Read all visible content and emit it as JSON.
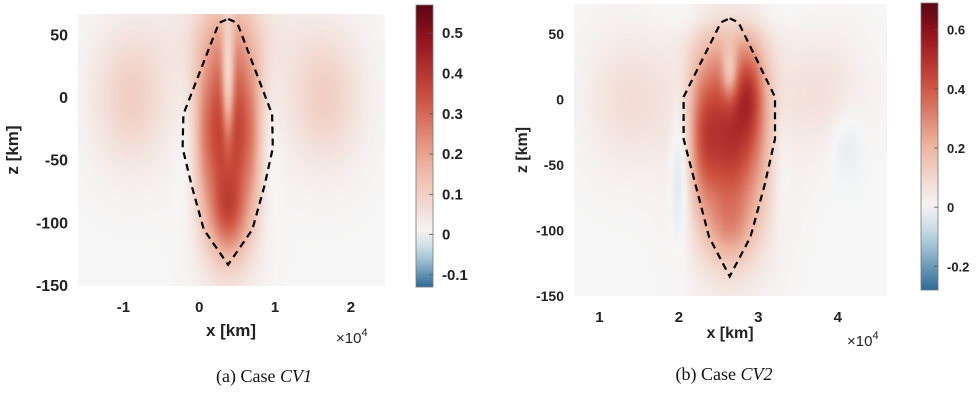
{
  "chart_data": [
    {
      "type": "heatmap",
      "caption_prefix": "(a) Case ",
      "caption_symbol": "CV1",
      "xlabel": "x [km]",
      "ylabel": "z [km]",
      "x_multiplier": "×10",
      "x_multiplier_exp": "4",
      "xlim": [
        -1.6,
        2.45
      ],
      "ylim": [
        -150,
        67
      ],
      "xticks": [
        -1,
        0,
        1,
        2
      ],
      "xtick_labels": [
        "-1",
        "0",
        "1",
        "2"
      ],
      "yticks": [
        50,
        0,
        -50,
        -100,
        -150
      ],
      "ytick_labels": [
        "50",
        "0",
        "-50",
        "-100",
        "-150"
      ],
      "colorbar": {
        "range": [
          -0.13,
          0.57
        ],
        "ticks": [
          0.5,
          0.4,
          0.3,
          0.2,
          0.1,
          0,
          -0.1
        ],
        "tick_labels": [
          "0.5",
          "0.4",
          "0.3",
          "0.2",
          "0.1",
          "0",
          "-0.1"
        ]
      },
      "field": {
        "center_x": 0.38,
        "blobs": [
          {
            "x": 0.38,
            "z": -25,
            "sx": 0.28,
            "sz": 60,
            "a": 0.42
          },
          {
            "x": 0.38,
            "z": -95,
            "sx": 0.17,
            "sz": 22,
            "a": 0.15
          },
          {
            "x": 0.38,
            "z": 10,
            "sx": 0.06,
            "sz": 35,
            "a": -0.27
          },
          {
            "x": 0.05,
            "z": -30,
            "sx": 0.09,
            "sz": 40,
            "a": 0.05
          },
          {
            "x": 0.71,
            "z": -30,
            "sx": 0.09,
            "sz": 40,
            "a": 0.05
          },
          {
            "x": -0.9,
            "z": 0,
            "sx": 0.35,
            "sz": 38,
            "a": 0.1
          },
          {
            "x": 1.65,
            "z": 0,
            "sx": 0.35,
            "sz": 38,
            "a": 0.1
          },
          {
            "x": -0.15,
            "z": -40,
            "sx": 0.12,
            "sz": 40,
            "a": -0.05
          },
          {
            "x": 0.91,
            "z": -40,
            "sx": 0.12,
            "sz": 40,
            "a": -0.05
          },
          {
            "x": 0.38,
            "z": 50,
            "sx": 0.7,
            "sz": 25,
            "a": 0.04
          }
        ]
      },
      "dashed_outline": {
        "x": [
          0.38,
          0.5,
          0.96,
          0.97,
          0.86,
          0.7,
          0.38,
          0.06,
          -0.1,
          -0.22,
          -0.21,
          0.26,
          0.38
        ],
        "z": [
          63,
          60,
          -13,
          -40,
          -70,
          -105,
          -133,
          -105,
          -70,
          -40,
          -13,
          60,
          63
        ]
      }
    },
    {
      "type": "heatmap",
      "caption_prefix": "(b) Case ",
      "caption_symbol": "CV2",
      "xlabel": "x [km]",
      "ylabel": "z [km]",
      "x_multiplier": "×10",
      "x_multiplier_exp": "4",
      "xlim": [
        0.68,
        4.62
      ],
      "ylim": [
        -150,
        73
      ],
      "xticks": [
        1,
        2,
        3,
        4
      ],
      "xtick_labels": [
        "1",
        "2",
        "3",
        "4"
      ],
      "yticks": [
        50,
        0,
        -50,
        -100,
        -150
      ],
      "ytick_labels": [
        "50",
        "0",
        "-50",
        "-100",
        "-150"
      ],
      "colorbar": {
        "range": [
          -0.28,
          0.69
        ],
        "ticks": [
          0.6,
          0.4,
          0.2,
          0,
          -0.2
        ],
        "tick_labels": [
          "0.6",
          "0.4",
          "0.2",
          "0",
          "-0.2"
        ]
      },
      "field": {
        "center_x": 2.64,
        "blobs": [
          {
            "x": 2.64,
            "z": -25,
            "sx": 0.34,
            "sz": 55,
            "a": 0.5
          },
          {
            "x": 2.9,
            "z": 5,
            "sx": 0.12,
            "sz": 25,
            "a": 0.18
          },
          {
            "x": 2.3,
            "z": -30,
            "sx": 0.12,
            "sz": 35,
            "a": 0.14
          },
          {
            "x": 2.64,
            "z": 20,
            "sx": 0.07,
            "sz": 15,
            "a": -0.22
          },
          {
            "x": 2.64,
            "z": -100,
            "sx": 0.2,
            "sz": 18,
            "a": 0.1
          },
          {
            "x": 1.4,
            "z": 0,
            "sx": 0.38,
            "sz": 35,
            "a": 0.08
          },
          {
            "x": 3.8,
            "z": 5,
            "sx": 0.35,
            "sz": 30,
            "a": 0.07
          },
          {
            "x": 2.03,
            "z": -45,
            "sx": 0.1,
            "sz": 40,
            "a": -0.12
          },
          {
            "x": 3.28,
            "z": -40,
            "sx": 0.1,
            "sz": 35,
            "a": -0.06
          },
          {
            "x": 2.64,
            "z": 65,
            "sx": 0.45,
            "sz": 12,
            "a": -0.06
          },
          {
            "x": 4.1,
            "z": -30,
            "sx": 0.15,
            "sz": 20,
            "a": -0.04
          }
        ]
      },
      "dashed_outline": {
        "x": [
          2.64,
          2.75,
          3.21,
          3.21,
          3.08,
          2.9,
          2.64,
          2.38,
          2.21,
          2.06,
          2.06,
          2.53,
          2.64
        ],
        "z": [
          62,
          59,
          2,
          -30,
          -65,
          -105,
          -135,
          -105,
          -65,
          -30,
          2,
          59,
          62
        ]
      }
    }
  ]
}
